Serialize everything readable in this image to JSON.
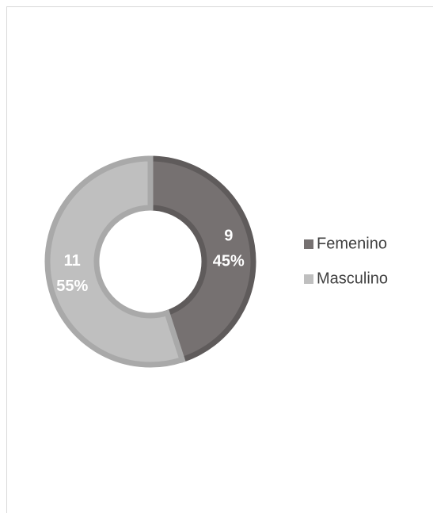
{
  "chart_data": {
    "type": "donut",
    "categories": [
      "Femenino",
      "Masculino"
    ],
    "values": [
      9,
      11
    ],
    "percentages": [
      45,
      55
    ],
    "percentage_labels": [
      "45%",
      "55%"
    ],
    "colors": [
      "#767171",
      "#bfbfbf"
    ],
    "border_colors": [
      "#5f5b5b",
      "#a9a9a9"
    ],
    "legend": "right"
  }
}
